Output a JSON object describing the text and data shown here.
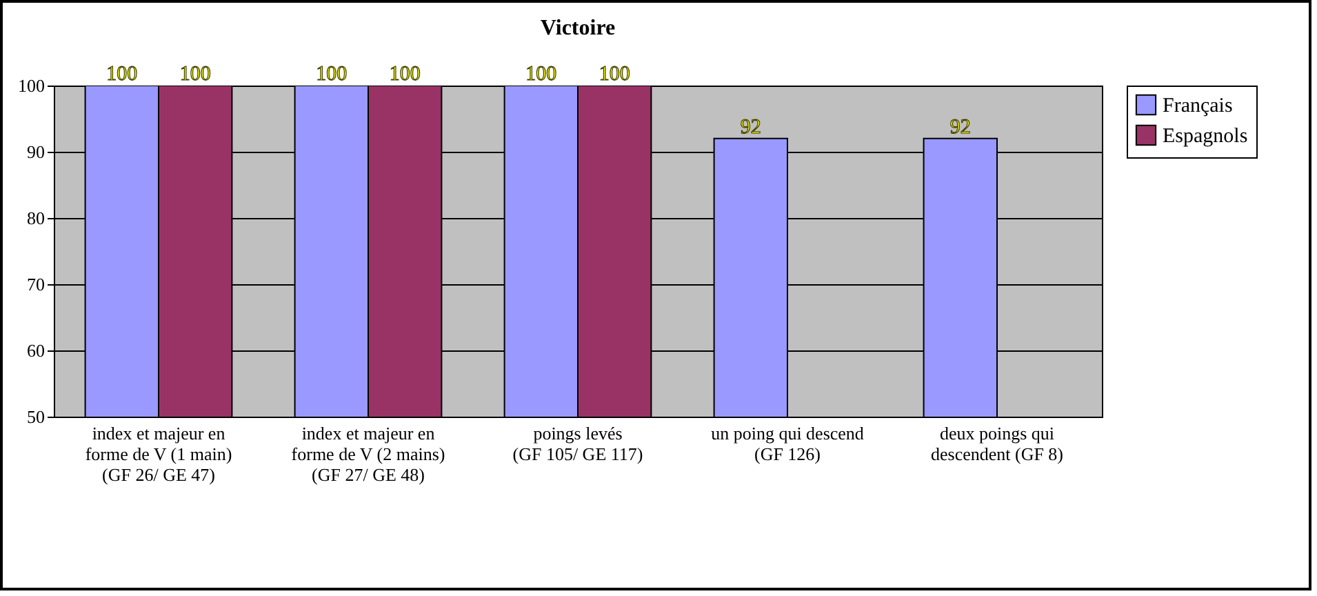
{
  "chart_data": {
    "type": "bar",
    "title": "Victoire",
    "categories": [
      "index et majeur en\nforme de V (1 main)\n(GF 26/ GE 47)",
      "index et majeur en\nforme de V (2 mains)\n(GF 27/ GE 48)",
      "poings levés\n(GF 105/ GE 117)",
      "un poing qui descend\n(GF 126)",
      "deux poings qui\ndescendent (GF 8)"
    ],
    "series": [
      {
        "name": "Français",
        "color": "#9999ff",
        "values": [
          100,
          100,
          100,
          92,
          92
        ]
      },
      {
        "name": "Espagnols",
        "color": "#993366",
        "values": [
          100,
          100,
          100,
          null,
          null
        ]
      }
    ],
    "ylim": [
      50,
      100
    ],
    "yticks": [
      50,
      60,
      70,
      80,
      90,
      100
    ],
    "grid": "y",
    "legend": "right",
    "data_labels": true
  }
}
